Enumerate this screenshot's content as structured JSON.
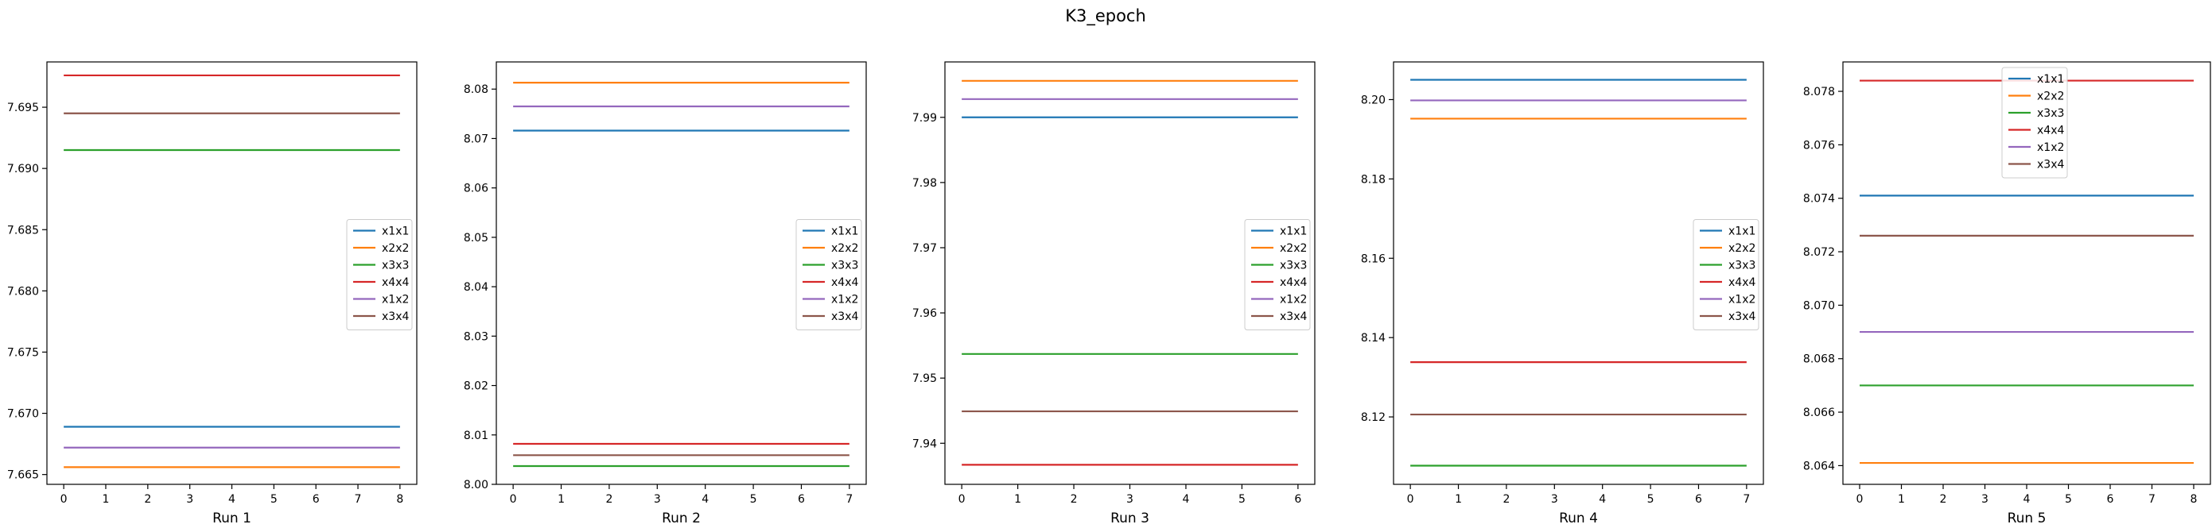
{
  "suptitle": "K3_epoch",
  "colors": {
    "x1x1": "#1f77b4",
    "x2x2": "#ff7f0e",
    "x3x3": "#2ca02c",
    "x4x4": "#d62728",
    "x1x2": "#9467bd",
    "x3x4": "#8c564b"
  },
  "chart_data": [
    {
      "type": "line",
      "title": "",
      "xlabel": "Run 1",
      "ylabel": "",
      "x": [
        0,
        1,
        2,
        3,
        4,
        5,
        6,
        7,
        8
      ],
      "xlim": [
        -0.4,
        8.4
      ],
      "ylim": [
        7.6642,
        7.6987
      ],
      "yticks": [
        "7.665",
        "7.670",
        "7.675",
        "7.680",
        "7.685",
        "7.690",
        "7.695"
      ],
      "legend_position": "center right",
      "series": [
        {
          "name": "x1x1",
          "values": [
            7.6689,
            7.6689,
            7.6689,
            7.6689,
            7.6689,
            7.6689,
            7.6689,
            7.6689,
            7.6689
          ]
        },
        {
          "name": "x2x2",
          "values": [
            7.6656,
            7.6656,
            7.6656,
            7.6656,
            7.6656,
            7.6656,
            7.6656,
            7.6656,
            7.6656
          ]
        },
        {
          "name": "x3x3",
          "values": [
            7.6915,
            7.6915,
            7.6915,
            7.6915,
            7.6915,
            7.6915,
            7.6915,
            7.6915,
            7.6915
          ]
        },
        {
          "name": "x4x4",
          "values": [
            7.6976,
            7.6976,
            7.6976,
            7.6976,
            7.6976,
            7.6976,
            7.6976,
            7.6976,
            7.6976
          ]
        },
        {
          "name": "x1x2",
          "values": [
            7.6672,
            7.6672,
            7.6672,
            7.6672,
            7.6672,
            7.6672,
            7.6672,
            7.6672,
            7.6672
          ]
        },
        {
          "name": "x3x4",
          "values": [
            7.6945,
            7.6945,
            7.6945,
            7.6945,
            7.6945,
            7.6945,
            7.6945,
            7.6945,
            7.6945
          ]
        }
      ]
    },
    {
      "type": "line",
      "title": "",
      "xlabel": "Run 2",
      "ylabel": "",
      "x": [
        0,
        1,
        2,
        3,
        4,
        5,
        6,
        7
      ],
      "xlim": [
        -0.35,
        7.35
      ],
      "ylim": [
        8.0,
        8.0855
      ],
      "yticks": [
        "8.00",
        "8.01",
        "8.02",
        "8.03",
        "8.04",
        "8.05",
        "8.06",
        "8.07",
        "8.08"
      ],
      "legend_position": "center right",
      "series": [
        {
          "name": "x1x1",
          "values": [
            8.0716,
            8.0716,
            8.0716,
            8.0716,
            8.0716,
            8.0716,
            8.0716,
            8.0716
          ]
        },
        {
          "name": "x2x2",
          "values": [
            8.0813,
            8.0813,
            8.0813,
            8.0813,
            8.0813,
            8.0813,
            8.0813,
            8.0813
          ]
        },
        {
          "name": "x3x3",
          "values": [
            8.0037,
            8.0037,
            8.0037,
            8.0037,
            8.0037,
            8.0037,
            8.0037,
            8.0037
          ]
        },
        {
          "name": "x4x4",
          "values": [
            8.0082,
            8.0082,
            8.0082,
            8.0082,
            8.0082,
            8.0082,
            8.0082,
            8.0082
          ]
        },
        {
          "name": "x1x2",
          "values": [
            8.0765,
            8.0765,
            8.0765,
            8.0765,
            8.0765,
            8.0765,
            8.0765,
            8.0765
          ]
        },
        {
          "name": "x3x4",
          "values": [
            8.0059,
            8.0059,
            8.0059,
            8.0059,
            8.0059,
            8.0059,
            8.0059,
            8.0059
          ]
        }
      ]
    },
    {
      "type": "line",
      "title": "",
      "xlabel": "Run 3",
      "ylabel": "",
      "x": [
        0,
        1,
        2,
        3,
        4,
        5,
        6
      ],
      "xlim": [
        -0.3,
        6.3
      ],
      "ylim": [
        7.9337,
        7.9985
      ],
      "yticks": [
        "7.94",
        "7.95",
        "7.96",
        "7.97",
        "7.98",
        "7.99"
      ],
      "legend_position": "center right",
      "series": [
        {
          "name": "x1x1",
          "values": [
            7.99,
            7.99,
            7.99,
            7.99,
            7.99,
            7.99,
            7.99
          ]
        },
        {
          "name": "x2x2",
          "values": [
            7.9956,
            7.9956,
            7.9956,
            7.9956,
            7.9956,
            7.9956,
            7.9956
          ]
        },
        {
          "name": "x3x3",
          "values": [
            7.9537,
            7.9537,
            7.9537,
            7.9537,
            7.9537,
            7.9537,
            7.9537
          ]
        },
        {
          "name": "x4x4",
          "values": [
            7.9367,
            7.9367,
            7.9367,
            7.9367,
            7.9367,
            7.9367,
            7.9367
          ]
        },
        {
          "name": "x1x2",
          "values": [
            7.9928,
            7.9928,
            7.9928,
            7.9928,
            7.9928,
            7.9928,
            7.9928
          ]
        },
        {
          "name": "x3x4",
          "values": [
            7.9449,
            7.9449,
            7.9449,
            7.9449,
            7.9449,
            7.9449,
            7.9449
          ]
        }
      ]
    },
    {
      "type": "line",
      "title": "",
      "xlabel": "Run 4",
      "ylabel": "",
      "x": [
        0,
        1,
        2,
        3,
        4,
        5,
        6,
        7
      ],
      "xlim": [
        -0.35,
        7.35
      ],
      "ylim": [
        8.103,
        8.2095
      ],
      "yticks": [
        "8.12",
        "8.14",
        "8.16",
        "8.18",
        "8.20"
      ],
      "legend_position": "center right",
      "series": [
        {
          "name": "x1x1",
          "values": [
            8.205,
            8.205,
            8.205,
            8.205,
            8.205,
            8.205,
            8.205,
            8.205
          ]
        },
        {
          "name": "x2x2",
          "values": [
            8.1952,
            8.1952,
            8.1952,
            8.1952,
            8.1952,
            8.1952,
            8.1952,
            8.1952
          ]
        },
        {
          "name": "x3x3",
          "values": [
            8.1077,
            8.1077,
            8.1077,
            8.1077,
            8.1077,
            8.1077,
            8.1077,
            8.1077
          ]
        },
        {
          "name": "x4x4",
          "values": [
            8.1338,
            8.1338,
            8.1338,
            8.1338,
            8.1338,
            8.1338,
            8.1338,
            8.1338
          ]
        },
        {
          "name": "x1x2",
          "values": [
            8.1998,
            8.1998,
            8.1998,
            8.1998,
            8.1998,
            8.1998,
            8.1998,
            8.1998
          ]
        },
        {
          "name": "x3x4",
          "values": [
            8.1206,
            8.1206,
            8.1206,
            8.1206,
            8.1206,
            8.1206,
            8.1206,
            8.1206
          ]
        }
      ]
    },
    {
      "type": "line",
      "title": "",
      "xlabel": "Run 5",
      "ylabel": "",
      "x": [
        0,
        1,
        2,
        3,
        4,
        5,
        6,
        7,
        8
      ],
      "xlim": [
        -0.4,
        8.4
      ],
      "ylim": [
        8.0633,
        8.0791
      ],
      "yticks": [
        "8.064",
        "8.066",
        "8.068",
        "8.070",
        "8.072",
        "8.074",
        "8.076",
        "8.078"
      ],
      "legend_position": "upper center",
      "series": [
        {
          "name": "x1x1",
          "values": [
            8.0741,
            8.0741,
            8.0741,
            8.0741,
            8.0741,
            8.0741,
            8.0741,
            8.0741,
            8.0741
          ]
        },
        {
          "name": "x2x2",
          "values": [
            8.0641,
            8.0641,
            8.0641,
            8.0641,
            8.0641,
            8.0641,
            8.0641,
            8.0641,
            8.0641
          ]
        },
        {
          "name": "x3x3",
          "values": [
            8.067,
            8.067,
            8.067,
            8.067,
            8.067,
            8.067,
            8.067,
            8.067,
            8.067
          ]
        },
        {
          "name": "x4x4",
          "values": [
            8.0784,
            8.0784,
            8.0784,
            8.0784,
            8.0784,
            8.0784,
            8.0784,
            8.0784,
            8.0784
          ]
        },
        {
          "name": "x1x2",
          "values": [
            8.069,
            8.069,
            8.069,
            8.069,
            8.069,
            8.069,
            8.069,
            8.069,
            8.069
          ]
        },
        {
          "name": "x3x4",
          "values": [
            8.0726,
            8.0726,
            8.0726,
            8.0726,
            8.0726,
            8.0726,
            8.0726,
            8.0726,
            8.0726
          ]
        }
      ]
    }
  ]
}
